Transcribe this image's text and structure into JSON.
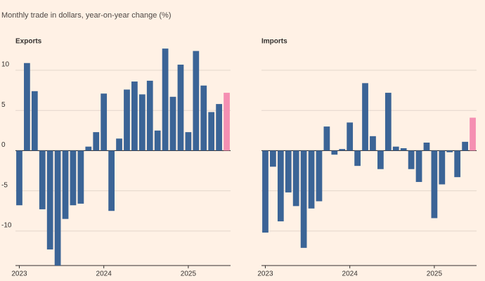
{
  "subtitle": "Monthly trade in dollars, year-on-year change (%)",
  "chart_data": [
    {
      "type": "bar",
      "title": "Exports",
      "categories": [
        "2023",
        null,
        null,
        null,
        null,
        null,
        null,
        null,
        null,
        null,
        null,
        "2024",
        null,
        null,
        null,
        null,
        null,
        null,
        null,
        null,
        null,
        null,
        "2025",
        null,
        null,
        null,
        null,
        null
      ],
      "series": [
        {
          "name": "Exports",
          "color": "#3b6496",
          "values": [
            -6.8,
            10.9,
            7.4,
            -7.3,
            -12.3,
            -14.3,
            -8.5,
            -6.8,
            -6.6,
            0.5,
            2.3,
            7.1,
            -7.5,
            1.5,
            7.6,
            8.6,
            7.0,
            8.7,
            2.5,
            12.7,
            6.7,
            10.7,
            2.3,
            12.4,
            8.1,
            4.8,
            5.8,
            7.2
          ]
        }
      ],
      "highlight_color": "#f58fb2",
      "ylim": [
        -14.3,
        13.5
      ],
      "yticks": [
        -10,
        -5,
        0,
        5,
        10
      ],
      "grid": true
    },
    {
      "type": "bar",
      "title": "Imports",
      "categories": [
        "2023",
        null,
        null,
        null,
        null,
        null,
        null,
        null,
        null,
        null,
        null,
        "2024",
        null,
        null,
        null,
        null,
        null,
        null,
        null,
        null,
        null,
        null,
        "2025",
        null,
        null,
        null,
        null,
        null
      ],
      "series": [
        {
          "name": "Imports",
          "color": "#3b6496",
          "values": [
            -10.2,
            -2.0,
            -8.8,
            -5.2,
            -6.9,
            -12.1,
            -7.2,
            -6.3,
            3.0,
            -0.5,
            0.2,
            3.5,
            -1.9,
            8.4,
            1.8,
            -2.3,
            7.2,
            0.5,
            0.3,
            -2.3,
            -3.9,
            1.0,
            -8.4,
            -4.2,
            -0.2,
            -3.3,
            1.1,
            4.1
          ]
        }
      ],
      "highlight_color": "#f58fb2",
      "ylim": [
        -14.3,
        13.5
      ],
      "yticks": [
        -10,
        -5,
        0,
        5,
        10
      ],
      "grid": true
    }
  ]
}
